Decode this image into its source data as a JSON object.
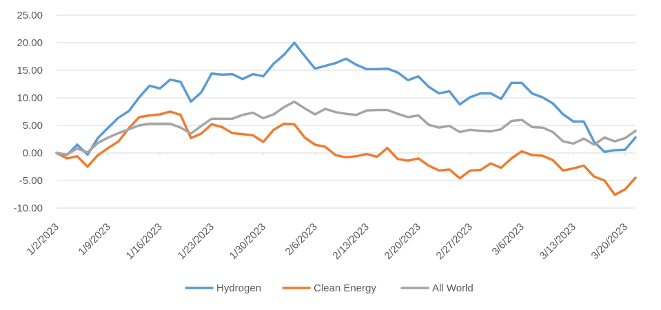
{
  "chart_data": {
    "type": "line",
    "title": "",
    "xlabel": "",
    "ylabel": "",
    "ylim": [
      -10,
      25
    ],
    "y_ticks": [
      "25.00",
      "20.00",
      "15.00",
      "10.00",
      "5.00",
      "0.00",
      "-5.00",
      "-10.00"
    ],
    "x_ticks": [
      "1/2/2023",
      "1/9/2023",
      "1/16/2023",
      "1/23/2023",
      "1/30/2023",
      "2/6/2023",
      "2/13/2023",
      "2/20/2023",
      "2/27/2023",
      "3/6/2023",
      "3/13/2023",
      "3/20/2023"
    ],
    "grid": true,
    "legend_position": "bottom",
    "x": [
      "1/2/2023",
      "1/3/2023",
      "1/4/2023",
      "1/5/2023",
      "1/6/2023",
      "1/9/2023",
      "1/10/2023",
      "1/11/2023",
      "1/12/2023",
      "1/13/2023",
      "1/16/2023",
      "1/17/2023",
      "1/18/2023",
      "1/19/2023",
      "1/20/2023",
      "1/23/2023",
      "1/24/2023",
      "1/25/2023",
      "1/26/2023",
      "1/27/2023",
      "1/30/2023",
      "1/31/2023",
      "2/1/2023",
      "2/2/2023",
      "2/3/2023",
      "2/6/2023",
      "2/7/2023",
      "2/8/2023",
      "2/9/2023",
      "2/10/2023",
      "2/13/2023",
      "2/14/2023",
      "2/15/2023",
      "2/16/2023",
      "2/17/2023",
      "2/20/2023",
      "2/21/2023",
      "2/22/2023",
      "2/23/2023",
      "2/24/2023",
      "2/27/2023",
      "2/28/2023",
      "3/1/2023",
      "3/2/2023",
      "3/3/2023",
      "3/6/2023",
      "3/7/2023",
      "3/8/2023",
      "3/9/2023",
      "3/10/2023",
      "3/13/2023",
      "3/14/2023",
      "3/15/2023",
      "3/16/2023",
      "3/17/2023",
      "3/20/2023",
      "3/21/2023"
    ],
    "series": [
      {
        "name": "Hydrogen",
        "color": "#5B9BD5",
        "values": [
          0.0,
          -0.4,
          1.5,
          -0.3,
          2.7,
          4.6,
          6.4,
          7.6,
          10.1,
          12.2,
          11.7,
          13.3,
          12.9,
          9.3,
          11.0,
          14.4,
          14.2,
          14.3,
          13.4,
          14.3,
          13.9,
          16.2,
          17.8,
          20.0,
          17.6,
          15.3,
          15.8,
          16.3,
          17.1,
          16.0,
          15.2,
          15.2,
          15.3,
          14.6,
          13.2,
          13.9,
          12.0,
          10.8,
          11.2,
          8.8,
          10.1,
          10.8,
          10.8,
          9.8,
          12.7,
          12.7,
          10.8,
          10.1,
          9.0,
          7.0,
          5.7,
          5.7,
          2.0,
          0.2,
          0.5,
          0.6,
          2.8
        ]
      },
      {
        "name": "Clean Energy",
        "color": "#ED7D31",
        "values": [
          0.0,
          -1.0,
          -0.6,
          -2.5,
          -0.4,
          0.9,
          2.1,
          4.5,
          6.5,
          6.8,
          7.0,
          7.5,
          6.9,
          2.7,
          3.5,
          5.2,
          4.7,
          3.6,
          3.4,
          3.2,
          2.0,
          4.2,
          5.3,
          5.2,
          2.8,
          1.5,
          1.1,
          -0.4,
          -0.8,
          -0.6,
          -0.2,
          -0.7,
          0.9,
          -1.1,
          -1.4,
          -1.0,
          -2.3,
          -3.2,
          -3.0,
          -4.6,
          -3.2,
          -3.1,
          -1.9,
          -2.7,
          -1.0,
          0.3,
          -0.4,
          -0.5,
          -1.3,
          -3.2,
          -2.8,
          -2.3,
          -4.3,
          -5.0,
          -7.6,
          -6.6,
          -4.5
        ]
      },
      {
        "name": "All World",
        "color": "#A5A5A5",
        "values": [
          0.0,
          -0.3,
          0.8,
          0.1,
          1.8,
          2.8,
          3.6,
          4.3,
          5.0,
          5.3,
          5.3,
          5.3,
          4.6,
          3.5,
          4.9,
          6.2,
          6.2,
          6.2,
          6.9,
          7.3,
          6.3,
          7.0,
          8.3,
          9.3,
          8.1,
          7.0,
          8.0,
          7.4,
          7.1,
          6.9,
          7.7,
          7.8,
          7.8,
          7.1,
          6.5,
          6.8,
          5.1,
          4.6,
          4.9,
          3.8,
          4.2,
          4.0,
          3.9,
          4.3,
          5.8,
          6.0,
          4.7,
          4.6,
          3.8,
          2.1,
          1.7,
          2.6,
          1.5,
          2.8,
          2.1,
          2.7,
          4.0
        ]
      }
    ]
  }
}
